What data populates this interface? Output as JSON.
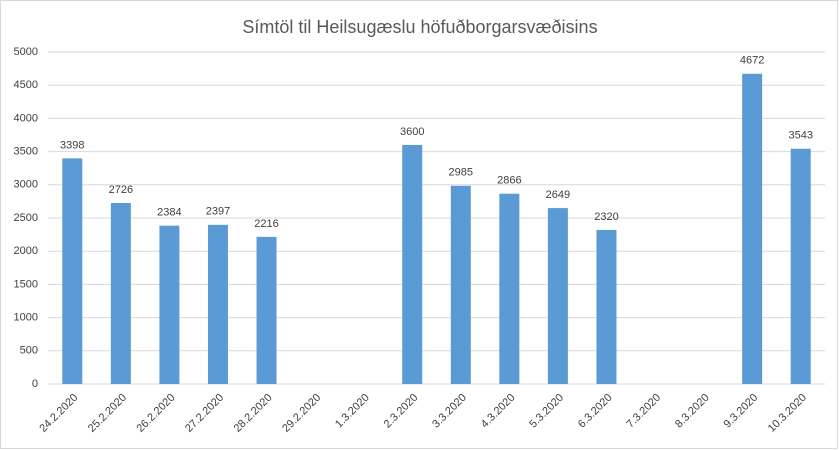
{
  "chart_data": {
    "type": "bar",
    "title": "Símtöl til Heilsugæslu höfuðborgarsvæðisins",
    "categories": [
      "24.2.2020",
      "25.2.2020",
      "26.2.2020",
      "27.2.2020",
      "28.2.2020",
      "29.2.2020",
      "1.3.2020",
      "2.3.2020",
      "3.3.2020",
      "4.3.2020",
      "5.3.2020",
      "6.3.2020",
      "7.3.2020",
      "8.3.2020",
      "9.3.2020",
      "10.3.2020"
    ],
    "values": [
      3398,
      2726,
      2384,
      2397,
      2216,
      null,
      null,
      3600,
      2985,
      2866,
      2649,
      2320,
      null,
      null,
      4672,
      3543
    ],
    "color": "#5b9bd5",
    "ylim": [
      0,
      5000
    ],
    "yticks": [
      0,
      500,
      1000,
      1500,
      2000,
      2500,
      3000,
      3500,
      4000,
      4500,
      5000
    ],
    "grid": true
  }
}
